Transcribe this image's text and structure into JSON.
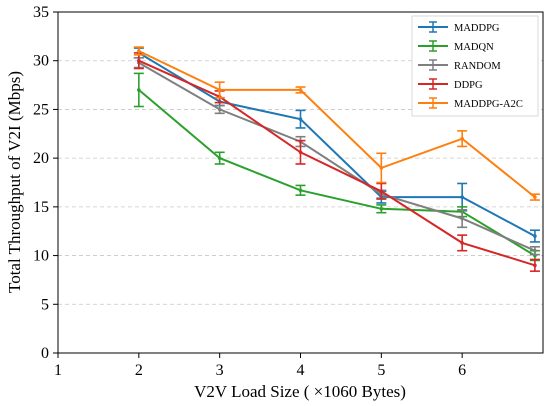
{
  "chart_data": {
    "type": "line",
    "xlabel": "V2V Load Size ( ×1060 Bytes)",
    "ylabel": "Total Throughput of V2I (Mbps)",
    "xlim": [
      1,
      7
    ],
    "ylim": [
      0,
      35
    ],
    "xticks": [
      1,
      2,
      3,
      4,
      5,
      6
    ],
    "yticks": [
      0,
      5,
      10,
      15,
      20,
      25,
      30,
      35
    ],
    "grid": "horizontal-dashed",
    "legend_position": "top-right",
    "x": [
      2,
      3,
      4,
      5,
      6,
      6.9
    ],
    "series": [
      {
        "name": "MADDPG",
        "color": "#1f77b4",
        "values": [
          30.8,
          25.8,
          24.0,
          16.0,
          16.0,
          12.0
        ],
        "errors": [
          0.5,
          0.4,
          0.9,
          0.6,
          1.4,
          0.6
        ]
      },
      {
        "name": "MADQN",
        "color": "#2ca02c",
        "values": [
          27.0,
          20.0,
          16.7,
          14.8,
          14.5,
          10.0
        ],
        "errors": [
          1.7,
          0.6,
          0.5,
          0.4,
          0.5,
          0.5
        ]
      },
      {
        "name": "RANDOM",
        "color": "#7f7f7f",
        "values": [
          29.8,
          25.0,
          21.7,
          16.3,
          13.8,
          10.5
        ],
        "errors": [
          0.5,
          0.4,
          0.5,
          0.4,
          0.9,
          0.4
        ]
      },
      {
        "name": "DDPG",
        "color": "#d62728",
        "values": [
          30.0,
          26.3,
          20.6,
          16.6,
          11.3,
          9.0
        ],
        "errors": [
          0.8,
          0.6,
          1.2,
          0.8,
          0.8,
          0.6
        ]
      },
      {
        "name": "MADDPG-A2C",
        "color": "#ff7f0e",
        "values": [
          31.0,
          27.0,
          27.0,
          19.0,
          22.0,
          16.0
        ],
        "errors": [
          0.4,
          0.8,
          0.3,
          1.5,
          0.8,
          0.3
        ]
      }
    ]
  }
}
